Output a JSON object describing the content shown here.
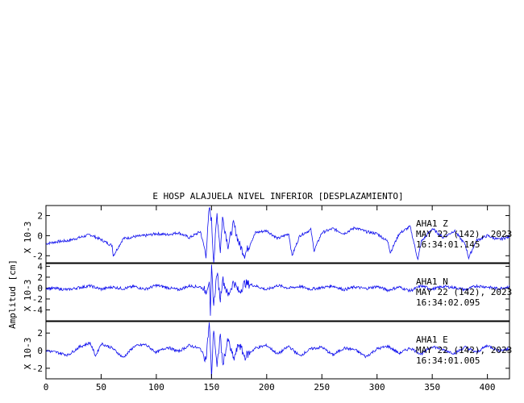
{
  "chart_data": {
    "type": "line",
    "title": "E HOSP ALAJUELA NIVEL INFERIOR [DESPLAZAMIENTO]",
    "ylabel": "Amplitud [cm]",
    "x_ticks": [
      "0",
      "50",
      "100",
      "150",
      "200",
      "250",
      "300",
      "350",
      "400"
    ],
    "xlim": [
      0,
      420
    ],
    "line_color": "#1010ee",
    "panels": [
      {
        "name": "Z",
        "scale_label": "X 10-3",
        "annotation": [
          "AHA1   Z",
          "MAY 22 (142), 2023",
          "16:34:01.145"
        ],
        "y_ticks": [
          "2",
          "0",
          "-2"
        ],
        "ylim": [
          -2.7,
          3.0
        ],
        "series": [
          {
            "x": [
              0,
              10,
              20,
              30,
              40,
              50,
              60,
              61,
              70,
              80,
              90,
              100,
              110,
              120,
              130,
              140,
              145,
              148,
              150,
              152,
              155,
              158,
              160,
              165,
              170,
              175,
              180,
              190,
              200,
              210,
              220,
              223,
              230,
              240,
              243,
              250,
              260,
              270,
              280,
              290,
              300,
              310,
              312,
              320,
              330,
              337,
              340,
              350,
              360,
              370,
              380,
              383,
              390,
              400,
              410,
              420
            ],
            "values": [
              -0.8,
              -0.6,
              -0.5,
              -0.2,
              0.1,
              -0.4,
              -1.0,
              -2.0,
              -0.3,
              -0.1,
              0.0,
              0.2,
              0.1,
              0.3,
              -0.2,
              0.4,
              -1.9,
              2.8,
              1.5,
              -2.7,
              2.2,
              -1.5,
              1.8,
              -1.0,
              1.2,
              -0.8,
              -1.9,
              0.3,
              0.5,
              -0.3,
              0.2,
              -2.0,
              0.0,
              0.6,
              -1.5,
              0.3,
              0.7,
              0.2,
              0.8,
              0.4,
              0.2,
              -0.6,
              -1.7,
              0.2,
              0.9,
              -2.4,
              -0.6,
              0.7,
              -0.2,
              0.5,
              -0.9,
              -2.2,
              -0.5,
              0.0,
              -0.4,
              -0.1
            ]
          }
        ]
      },
      {
        "name": "N",
        "scale_label": "X 10-3",
        "annotation": [
          "AHA1   N",
          "MAY 22 (142), 2023",
          "16:34:02.095"
        ],
        "y_ticks": [
          "4",
          "2",
          "0",
          "-2",
          "-4"
        ],
        "ylim": [
          -6.0,
          4.5
        ],
        "series": [
          {
            "x": [
              0,
              10,
              20,
              30,
              40,
              50,
              60,
              70,
              80,
              90,
              100,
              110,
              120,
              130,
              140,
              145,
              148,
              149,
              150,
              152,
              155,
              158,
              160,
              165,
              170,
              175,
              180,
              190,
              200,
              210,
              220,
              230,
              240,
              250,
              260,
              270,
              280,
              290,
              300,
              310,
              320,
              330,
              340,
              350,
              360,
              370,
              380,
              390,
              400,
              410,
              420
            ],
            "values": [
              0.0,
              -0.1,
              -0.3,
              0.1,
              0.4,
              -0.2,
              0.2,
              -0.1,
              0.3,
              -0.2,
              0.5,
              0.1,
              -0.3,
              0.4,
              0.2,
              -0.6,
              1.5,
              -5.8,
              3.9,
              -3.2,
              2.9,
              -2.1,
              1.8,
              -1.4,
              1.2,
              -0.8,
              0.9,
              0.4,
              -0.3,
              0.5,
              0.0,
              0.3,
              -0.2,
              0.1,
              0.4,
              -0.3,
              0.2,
              -0.1,
              0.3,
              -0.4,
              0.2,
              -0.5,
              0.4,
              -0.2,
              0.3,
              0.1,
              -0.3,
              0.4,
              0.2,
              -0.1,
              0.3
            ]
          }
        ]
      },
      {
        "name": "E",
        "scale_label": "X 10-3",
        "annotation": [
          "AHA1   E",
          "MAY 22 (142), 2023",
          "16:34:01.005"
        ],
        "y_ticks": [
          "2",
          "0",
          "-2"
        ],
        "ylim": [
          -3.2,
          3.3
        ],
        "series": [
          {
            "x": [
              0,
              10,
              20,
              30,
              40,
              45,
              50,
              60,
              70,
              80,
              90,
              100,
              110,
              120,
              130,
              140,
              145,
              148,
              150,
              152,
              155,
              158,
              160,
              165,
              170,
              175,
              180,
              190,
              200,
              210,
              220,
              230,
              240,
              250,
              260,
              270,
              280,
              290,
              300,
              310,
              320,
              330,
              340,
              350,
              360,
              370,
              380,
              390,
              400,
              410,
              420
            ],
            "values": [
              0.0,
              -0.2,
              -0.5,
              0.4,
              0.9,
              -0.6,
              0.8,
              0.3,
              -0.8,
              0.5,
              0.7,
              -0.2,
              0.4,
              -0.1,
              0.6,
              0.2,
              -1.0,
              3.2,
              -3.0,
              2.6,
              -2.0,
              1.9,
              -1.6,
              1.2,
              -1.0,
              0.8,
              -0.7,
              0.3,
              0.6,
              -0.4,
              0.5,
              -0.6,
              0.2,
              0.4,
              -0.5,
              0.3,
              0.1,
              -0.7,
              0.2,
              0.5,
              -0.3,
              0.3,
              -0.4,
              0.5,
              0.1,
              -0.3,
              0.4,
              -0.2,
              0.6,
              0.0,
              0.2
            ]
          }
        ]
      }
    ]
  }
}
